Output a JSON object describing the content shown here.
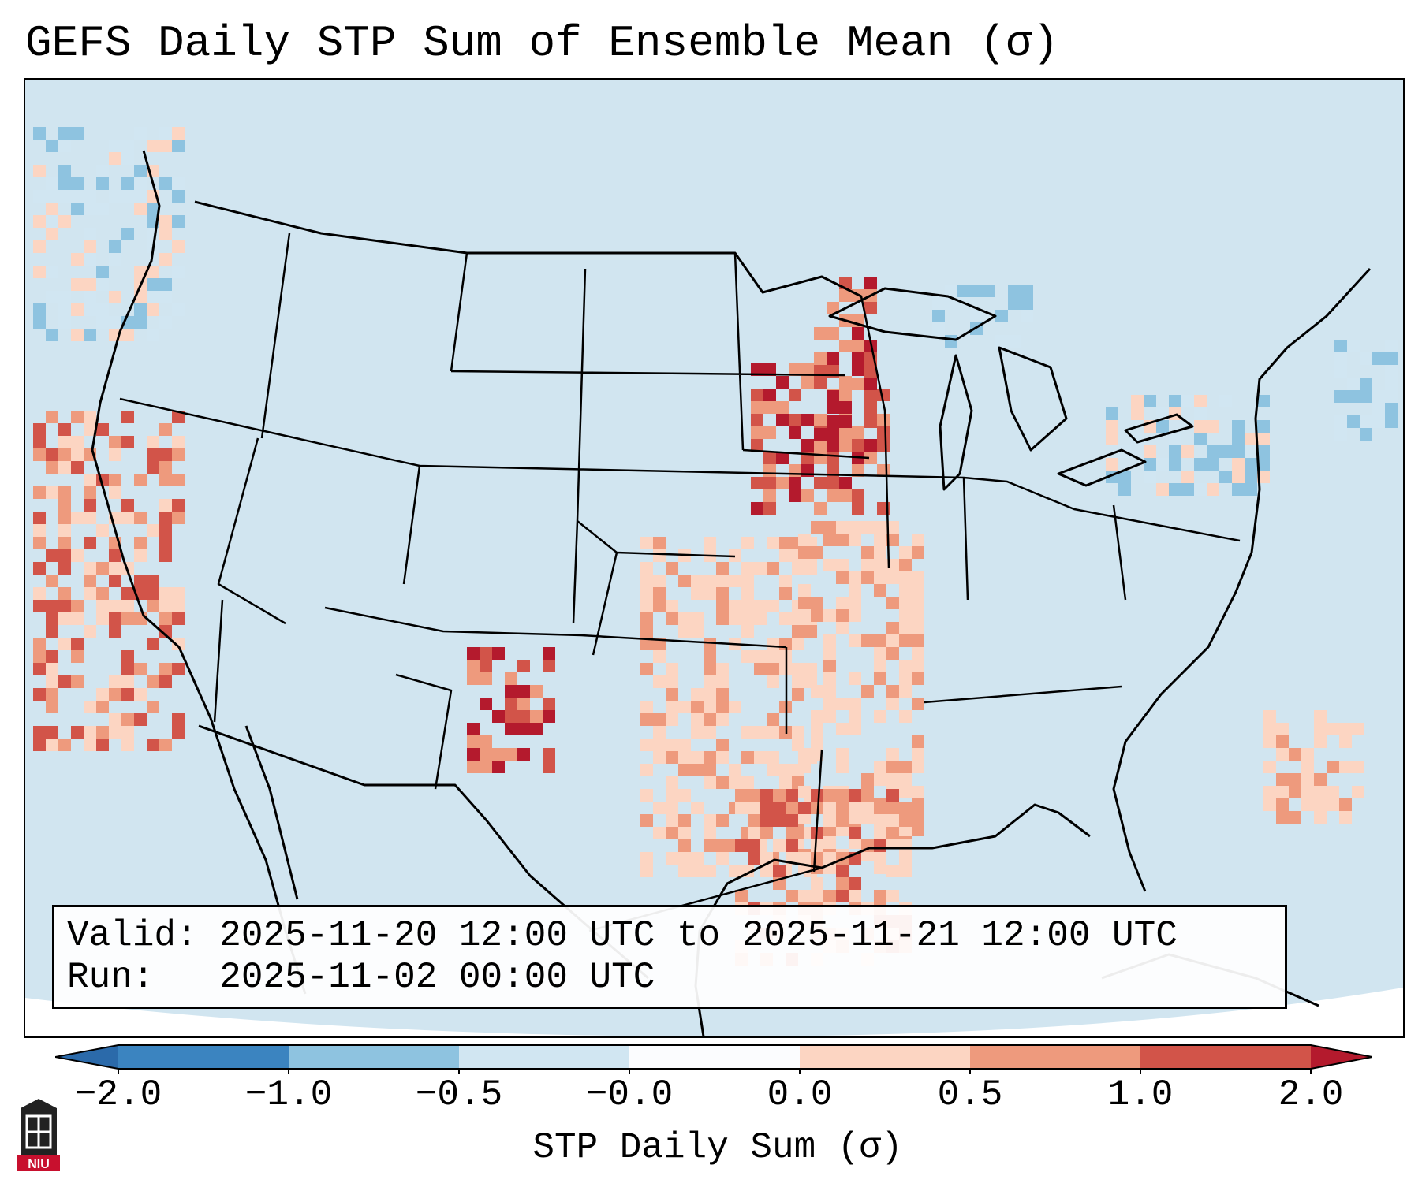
{
  "title": "GEFS Daily STP Sum of Ensemble Mean (σ)",
  "info": {
    "valid_label": "Valid:",
    "valid_value": "2025-11-20 12:00 UTC to 2025-11-21 12:00 UTC",
    "run_label": "Run:",
    "run_value": "2025-11-02 00:00 UTC"
  },
  "colorbar": {
    "label": "STP Daily Sum (σ)",
    "ticks": [
      "−2.0",
      "−1.0",
      "−0.5",
      "−0.0",
      "0.0",
      "0.5",
      "1.0",
      "2.0"
    ],
    "colors": [
      "#3b84c0",
      "#8ec3e0",
      "#d1e6f2",
      "#fbfcfe",
      "#fcd5c2",
      "#ee9a7d",
      "#d25449"
    ],
    "extend_low_color": "#2b6aaa",
    "extend_high_color": "#b41a2d"
  },
  "map": {
    "background_color": "#d1e5f0",
    "outline_color": "#000000",
    "features": [
      "state-borders",
      "country-borders",
      "coastlines",
      "great-lakes"
    ]
  },
  "logo": {
    "text": "NIU"
  }
}
